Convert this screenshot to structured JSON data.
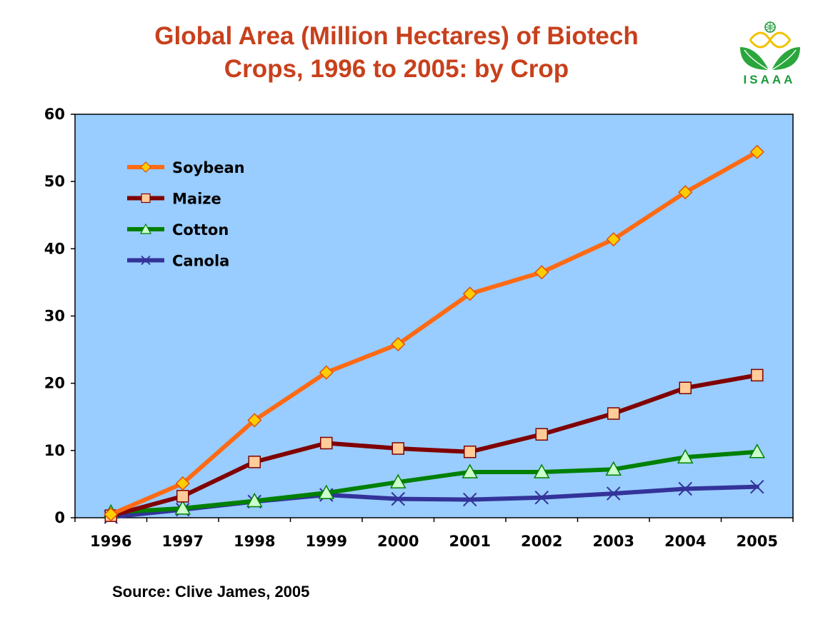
{
  "chart_data": {
    "type": "line",
    "title_line1": "Global Area (Million Hectares) of Biotech",
    "title_line2": "Crops, 1996 to 2005: by Crop",
    "x": [
      "1996",
      "1997",
      "1998",
      "1999",
      "2000",
      "2001",
      "2002",
      "2003",
      "2004",
      "2005"
    ],
    "ylim": [
      0,
      60
    ],
    "yticks": [
      "0",
      "10",
      "20",
      "30",
      "40",
      "50",
      "60"
    ],
    "xlabel": "",
    "ylabel": "",
    "grid": false,
    "legend_position": "top-left",
    "plot_background": "#99ccff",
    "series": [
      {
        "name": "Soybean",
        "values": [
          0.5,
          5.1,
          14.5,
          21.6,
          25.8,
          33.3,
          36.5,
          41.4,
          48.4,
          54.4
        ],
        "color": "#ff6a13",
        "marker": "diamond",
        "marker_fill": "#ffcc00",
        "marker_stroke": "#e0500a"
      },
      {
        "name": "Maize",
        "values": [
          0.3,
          3.2,
          8.3,
          11.1,
          10.3,
          9.8,
          12.4,
          15.5,
          19.3,
          21.2
        ],
        "color": "#800000",
        "marker": "square",
        "marker_fill": "#ffcc99",
        "marker_stroke": "#800000"
      },
      {
        "name": "Cotton",
        "values": [
          0.8,
          1.4,
          2.5,
          3.7,
          5.3,
          6.8,
          6.8,
          7.2,
          9.0,
          9.8
        ],
        "color": "#008000",
        "marker": "triangle",
        "marker_fill": "#ccffcc",
        "marker_stroke": "#008000"
      },
      {
        "name": "Canola",
        "values": [
          0.1,
          1.2,
          2.4,
          3.4,
          2.8,
          2.7,
          3.0,
          3.6,
          4.3,
          4.6
        ],
        "color": "#333399",
        "marker": "cross",
        "marker_fill": "none",
        "marker_stroke": "#333399"
      }
    ]
  },
  "source": "Source: Clive James, 2005",
  "logo": {
    "text": "ISAAA",
    "icon": "isaaa-leaf-globe-logo"
  }
}
